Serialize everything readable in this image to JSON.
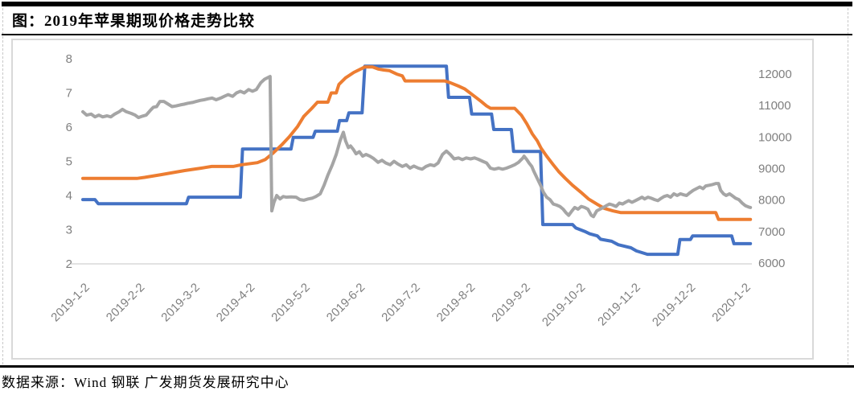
{
  "figure": {
    "title": "图：2019年苹果期现价格走势比较",
    "source_note": "数据来源：Wind 钢联 广发期货发展研究中心"
  },
  "colors": {
    "series_blue": "#4472C4",
    "series_orange": "#ED7D31",
    "series_gray": "#A5A5A5",
    "axis_text": "#7F7F7F",
    "gridline": "#D9D9D9",
    "chart_border": "#D9D9D9",
    "rule_black": "#000000"
  },
  "chart_data": {
    "type": "line",
    "title": "2019年苹果期现价格走势比较",
    "legend": "none",
    "grid": "single horizontal gridline at the bottom tick only",
    "x_axis": {
      "tick_labels": [
        "2019-1-2",
        "2019-2-2",
        "2019-3-2",
        "2019-4-2",
        "2019-5-2",
        "2019-6-2",
        "2019-7-2",
        "2019-8-2",
        "2019-9-2",
        "2019-10-2",
        "2019-11-2",
        "2019-12-2",
        "2020-1-2"
      ],
      "note": "series x values are fractional axis positions: 0 = 2019-1-2, 1 = 2019-2-2, ..., 12 = 2020-1-2"
    },
    "left_axis": {
      "ticks": [
        2,
        3,
        4,
        5,
        6,
        7,
        8
      ],
      "range": [
        2,
        8
      ]
    },
    "right_axis": {
      "ticks": [
        6000,
        7000,
        8000,
        9000,
        10000,
        11000,
        12000
      ],
      "range": [
        6000,
        12500
      ]
    },
    "units_note": "series values digitized against the left axis scale (2-8)",
    "series": [
      {
        "name": "blue-stepped-line",
        "color": "#4472C4",
        "points": [
          [
            0,
            3.88
          ],
          [
            0.22,
            3.88
          ],
          [
            0.28,
            3.76
          ],
          [
            1.88,
            3.76
          ],
          [
            1.92,
            3.95
          ],
          [
            2.86,
            3.95
          ],
          [
            2.9,
            5.36
          ],
          [
            3.78,
            5.36
          ],
          [
            3.82,
            5.7
          ],
          [
            4.18,
            5.7
          ],
          [
            4.22,
            5.88
          ],
          [
            4.62,
            5.88
          ],
          [
            4.66,
            6.19
          ],
          [
            4.79,
            6.19
          ],
          [
            4.83,
            6.42
          ],
          [
            5.07,
            6.42
          ],
          [
            5.12,
            7.78
          ],
          [
            6.6,
            7.78
          ],
          [
            6.64,
            6.87
          ],
          [
            7.02,
            6.87
          ],
          [
            7.06,
            6.38
          ],
          [
            7.42,
            6.38
          ],
          [
            7.46,
            5.93
          ],
          [
            7.78,
            5.93
          ],
          [
            7.82,
            5.29
          ],
          [
            8.31,
            5.29
          ],
          [
            8.35,
            3.15
          ],
          [
            8.89,
            3.15
          ],
          [
            8.95,
            3.05
          ],
          [
            9.11,
            2.95
          ],
          [
            9.2,
            2.88
          ],
          [
            9.34,
            2.82
          ],
          [
            9.4,
            2.72
          ],
          [
            9.6,
            2.66
          ],
          [
            9.72,
            2.56
          ],
          [
            9.95,
            2.47
          ],
          [
            10.05,
            2.38
          ],
          [
            10.25,
            2.28
          ],
          [
            10.8,
            2.28
          ],
          [
            10.84,
            2.71
          ],
          [
            11.03,
            2.71
          ],
          [
            11.07,
            2.82
          ],
          [
            11.78,
            2.82
          ],
          [
            11.82,
            2.59
          ],
          [
            12.12,
            2.59
          ]
        ]
      },
      {
        "name": "orange-line",
        "color": "#ED7D31",
        "points": [
          [
            0,
            4.5
          ],
          [
            0.98,
            4.5
          ],
          [
            1.12,
            4.53
          ],
          [
            1.42,
            4.61
          ],
          [
            1.64,
            4.67
          ],
          [
            1.85,
            4.73
          ],
          [
            2.15,
            4.8
          ],
          [
            2.34,
            4.85
          ],
          [
            2.73,
            4.85
          ],
          [
            2.88,
            4.9
          ],
          [
            3.17,
            4.96
          ],
          [
            3.31,
            5.05
          ],
          [
            3.46,
            5.25
          ],
          [
            3.61,
            5.48
          ],
          [
            3.75,
            5.72
          ],
          [
            3.9,
            6.02
          ],
          [
            4.01,
            6.31
          ],
          [
            4.15,
            6.54
          ],
          [
            4.26,
            6.73
          ],
          [
            4.45,
            6.73
          ],
          [
            4.51,
            7.0
          ],
          [
            4.6,
            7.0
          ],
          [
            4.65,
            7.25
          ],
          [
            4.77,
            7.44
          ],
          [
            4.92,
            7.6
          ],
          [
            5.07,
            7.72
          ],
          [
            5.12,
            7.76
          ],
          [
            5.26,
            7.76
          ],
          [
            5.36,
            7.7
          ],
          [
            5.46,
            7.67
          ],
          [
            5.57,
            7.65
          ],
          [
            5.7,
            7.55
          ],
          [
            5.8,
            7.5
          ],
          [
            5.85,
            7.35
          ],
          [
            6.57,
            7.35
          ],
          [
            6.67,
            7.3
          ],
          [
            6.82,
            7.2
          ],
          [
            6.93,
            7.12
          ],
          [
            7.11,
            6.9
          ],
          [
            7.23,
            6.75
          ],
          [
            7.33,
            6.62
          ],
          [
            7.4,
            6.55
          ],
          [
            7.84,
            6.55
          ],
          [
            7.96,
            6.35
          ],
          [
            8.06,
            6.1
          ],
          [
            8.16,
            5.8
          ],
          [
            8.25,
            5.6
          ],
          [
            8.32,
            5.38
          ],
          [
            8.42,
            5.15
          ],
          [
            8.54,
            4.9
          ],
          [
            8.64,
            4.7
          ],
          [
            8.76,
            4.5
          ],
          [
            8.89,
            4.3
          ],
          [
            9.04,
            4.1
          ],
          [
            9.18,
            3.9
          ],
          [
            9.33,
            3.75
          ],
          [
            9.47,
            3.62
          ],
          [
            9.62,
            3.55
          ],
          [
            9.77,
            3.5
          ],
          [
            11.49,
            3.5
          ],
          [
            11.54,
            3.3
          ],
          [
            12.12,
            3.3
          ]
        ]
      },
      {
        "name": "gray-volatile-line",
        "color": "#A5A5A5",
        "points": [
          [
            0,
            6.45
          ],
          [
            0.07,
            6.35
          ],
          [
            0.15,
            6.38
          ],
          [
            0.22,
            6.3
          ],
          [
            0.29,
            6.35
          ],
          [
            0.36,
            6.3
          ],
          [
            0.44,
            6.33
          ],
          [
            0.51,
            6.3
          ],
          [
            0.58,
            6.38
          ],
          [
            0.66,
            6.45
          ],
          [
            0.72,
            6.52
          ],
          [
            0.79,
            6.45
          ],
          [
            0.88,
            6.4
          ],
          [
            0.95,
            6.35
          ],
          [
            1.01,
            6.28
          ],
          [
            1.08,
            6.32
          ],
          [
            1.15,
            6.35
          ],
          [
            1.23,
            6.5
          ],
          [
            1.28,
            6.58
          ],
          [
            1.34,
            6.6
          ],
          [
            1.4,
            6.75
          ],
          [
            1.47,
            6.75
          ],
          [
            1.55,
            6.67
          ],
          [
            1.62,
            6.6
          ],
          [
            1.69,
            6.62
          ],
          [
            1.77,
            6.65
          ],
          [
            1.84,
            6.67
          ],
          [
            1.91,
            6.7
          ],
          [
            1.99,
            6.72
          ],
          [
            2.06,
            6.75
          ],
          [
            2.13,
            6.78
          ],
          [
            2.2,
            6.8
          ],
          [
            2.28,
            6.83
          ],
          [
            2.35,
            6.85
          ],
          [
            2.42,
            6.8
          ],
          [
            2.5,
            6.85
          ],
          [
            2.57,
            6.9
          ],
          [
            2.64,
            6.95
          ],
          [
            2.72,
            6.9
          ],
          [
            2.79,
            7.0
          ],
          [
            2.86,
            7.05
          ],
          [
            2.93,
            7.0
          ],
          [
            3.01,
            7.1
          ],
          [
            3.08,
            7.05
          ],
          [
            3.15,
            7.1
          ],
          [
            3.23,
            7.3
          ],
          [
            3.3,
            7.4
          ],
          [
            3.36,
            7.45
          ],
          [
            3.4,
            7.48
          ],
          [
            3.43,
            3.55
          ],
          [
            3.47,
            3.8
          ],
          [
            3.52,
            4.0
          ],
          [
            3.58,
            3.9
          ],
          [
            3.64,
            3.97
          ],
          [
            3.69,
            3.95
          ],
          [
            3.78,
            3.96
          ],
          [
            3.87,
            3.95
          ],
          [
            3.94,
            3.88
          ],
          [
            4.01,
            3.86
          ],
          [
            4.09,
            3.9
          ],
          [
            4.16,
            3.92
          ],
          [
            4.23,
            3.97
          ],
          [
            4.31,
            4.05
          ],
          [
            4.38,
            4.3
          ],
          [
            4.45,
            4.6
          ],
          [
            4.53,
            4.9
          ],
          [
            4.6,
            5.2
          ],
          [
            4.67,
            5.6
          ],
          [
            4.73,
            5.85
          ],
          [
            4.77,
            5.6
          ],
          [
            4.82,
            5.4
          ],
          [
            4.86,
            5.45
          ],
          [
            4.91,
            5.35
          ],
          [
            4.96,
            5.22
          ],
          [
            5.02,
            5.28
          ],
          [
            5.08,
            5.15
          ],
          [
            5.14,
            5.2
          ],
          [
            5.21,
            5.15
          ],
          [
            5.28,
            5.08
          ],
          [
            5.36,
            4.97
          ],
          [
            5.43,
            5.03
          ],
          [
            5.5,
            4.95
          ],
          [
            5.58,
            4.9
          ],
          [
            5.65,
            5.0
          ],
          [
            5.72,
            4.92
          ],
          [
            5.8,
            4.85
          ],
          [
            5.87,
            4.9
          ],
          [
            5.94,
            4.8
          ],
          [
            6.01,
            4.86
          ],
          [
            6.09,
            4.8
          ],
          [
            6.16,
            4.77
          ],
          [
            6.23,
            4.85
          ],
          [
            6.31,
            4.9
          ],
          [
            6.38,
            4.87
          ],
          [
            6.45,
            4.95
          ],
          [
            6.53,
            5.2
          ],
          [
            6.6,
            5.3
          ],
          [
            6.67,
            5.2
          ],
          [
            6.74,
            5.07
          ],
          [
            6.82,
            5.1
          ],
          [
            6.89,
            5.05
          ],
          [
            6.96,
            5.1
          ],
          [
            7.04,
            5.07
          ],
          [
            7.11,
            5.1
          ],
          [
            7.18,
            5.06
          ],
          [
            7.26,
            5.0
          ],
          [
            7.33,
            4.95
          ],
          [
            7.4,
            4.8
          ],
          [
            7.47,
            4.77
          ],
          [
            7.55,
            4.8
          ],
          [
            7.62,
            4.77
          ],
          [
            7.69,
            4.8
          ],
          [
            7.77,
            4.85
          ],
          [
            7.84,
            4.9
          ],
          [
            7.91,
            4.97
          ],
          [
            7.99,
            5.1
          ],
          [
            8.01,
            5.15
          ],
          [
            8.06,
            5.05
          ],
          [
            8.1,
            4.95
          ],
          [
            8.15,
            4.85
          ],
          [
            8.19,
            4.7
          ],
          [
            8.25,
            4.5
          ],
          [
            8.31,
            4.3
          ],
          [
            8.36,
            4.1
          ],
          [
            8.42,
            3.95
          ],
          [
            8.48,
            3.88
          ],
          [
            8.54,
            3.75
          ],
          [
            8.6,
            3.72
          ],
          [
            8.66,
            3.68
          ],
          [
            8.72,
            3.6
          ],
          [
            8.77,
            3.5
          ],
          [
            8.82,
            3.42
          ],
          [
            8.88,
            3.55
          ],
          [
            8.93,
            3.65
          ],
          [
            8.99,
            3.6
          ],
          [
            9.05,
            3.68
          ],
          [
            9.11,
            3.65
          ],
          [
            9.17,
            3.6
          ],
          [
            9.23,
            3.42
          ],
          [
            9.27,
            3.38
          ],
          [
            9.33,
            3.55
          ],
          [
            9.39,
            3.6
          ],
          [
            9.45,
            3.65
          ],
          [
            9.5,
            3.7
          ],
          [
            9.56,
            3.75
          ],
          [
            9.62,
            3.72
          ],
          [
            9.68,
            3.68
          ],
          [
            9.74,
            3.78
          ],
          [
            9.8,
            3.75
          ],
          [
            9.85,
            3.8
          ],
          [
            9.91,
            3.85
          ],
          [
            9.97,
            3.8
          ],
          [
            10.03,
            3.85
          ],
          [
            10.09,
            3.9
          ],
          [
            10.15,
            3.95
          ],
          [
            10.2,
            3.9
          ],
          [
            10.26,
            3.95
          ],
          [
            10.32,
            3.92
          ],
          [
            10.38,
            3.88
          ],
          [
            10.44,
            3.85
          ],
          [
            10.5,
            3.92
          ],
          [
            10.55,
            3.97
          ],
          [
            10.61,
            4.0
          ],
          [
            10.67,
            3.95
          ],
          [
            10.73,
            4.05
          ],
          [
            10.79,
            4.0
          ],
          [
            10.85,
            4.05
          ],
          [
            10.91,
            4.02
          ],
          [
            10.96,
            4.0
          ],
          [
            11.02,
            4.08
          ],
          [
            11.08,
            4.15
          ],
          [
            11.14,
            4.2
          ],
          [
            11.2,
            4.25
          ],
          [
            11.26,
            4.2
          ],
          [
            11.31,
            4.28
          ],
          [
            11.37,
            4.3
          ],
          [
            11.43,
            4.32
          ],
          [
            11.49,
            4.35
          ],
          [
            11.54,
            4.35
          ],
          [
            11.58,
            4.15
          ],
          [
            11.63,
            4.05
          ],
          [
            11.68,
            4.0
          ],
          [
            11.74,
            4.05
          ],
          [
            11.8,
            3.98
          ],
          [
            11.85,
            3.92
          ],
          [
            11.91,
            3.88
          ],
          [
            11.97,
            3.78
          ],
          [
            12.03,
            3.7
          ],
          [
            12.09,
            3.66
          ],
          [
            12.12,
            3.65
          ]
        ]
      }
    ]
  }
}
